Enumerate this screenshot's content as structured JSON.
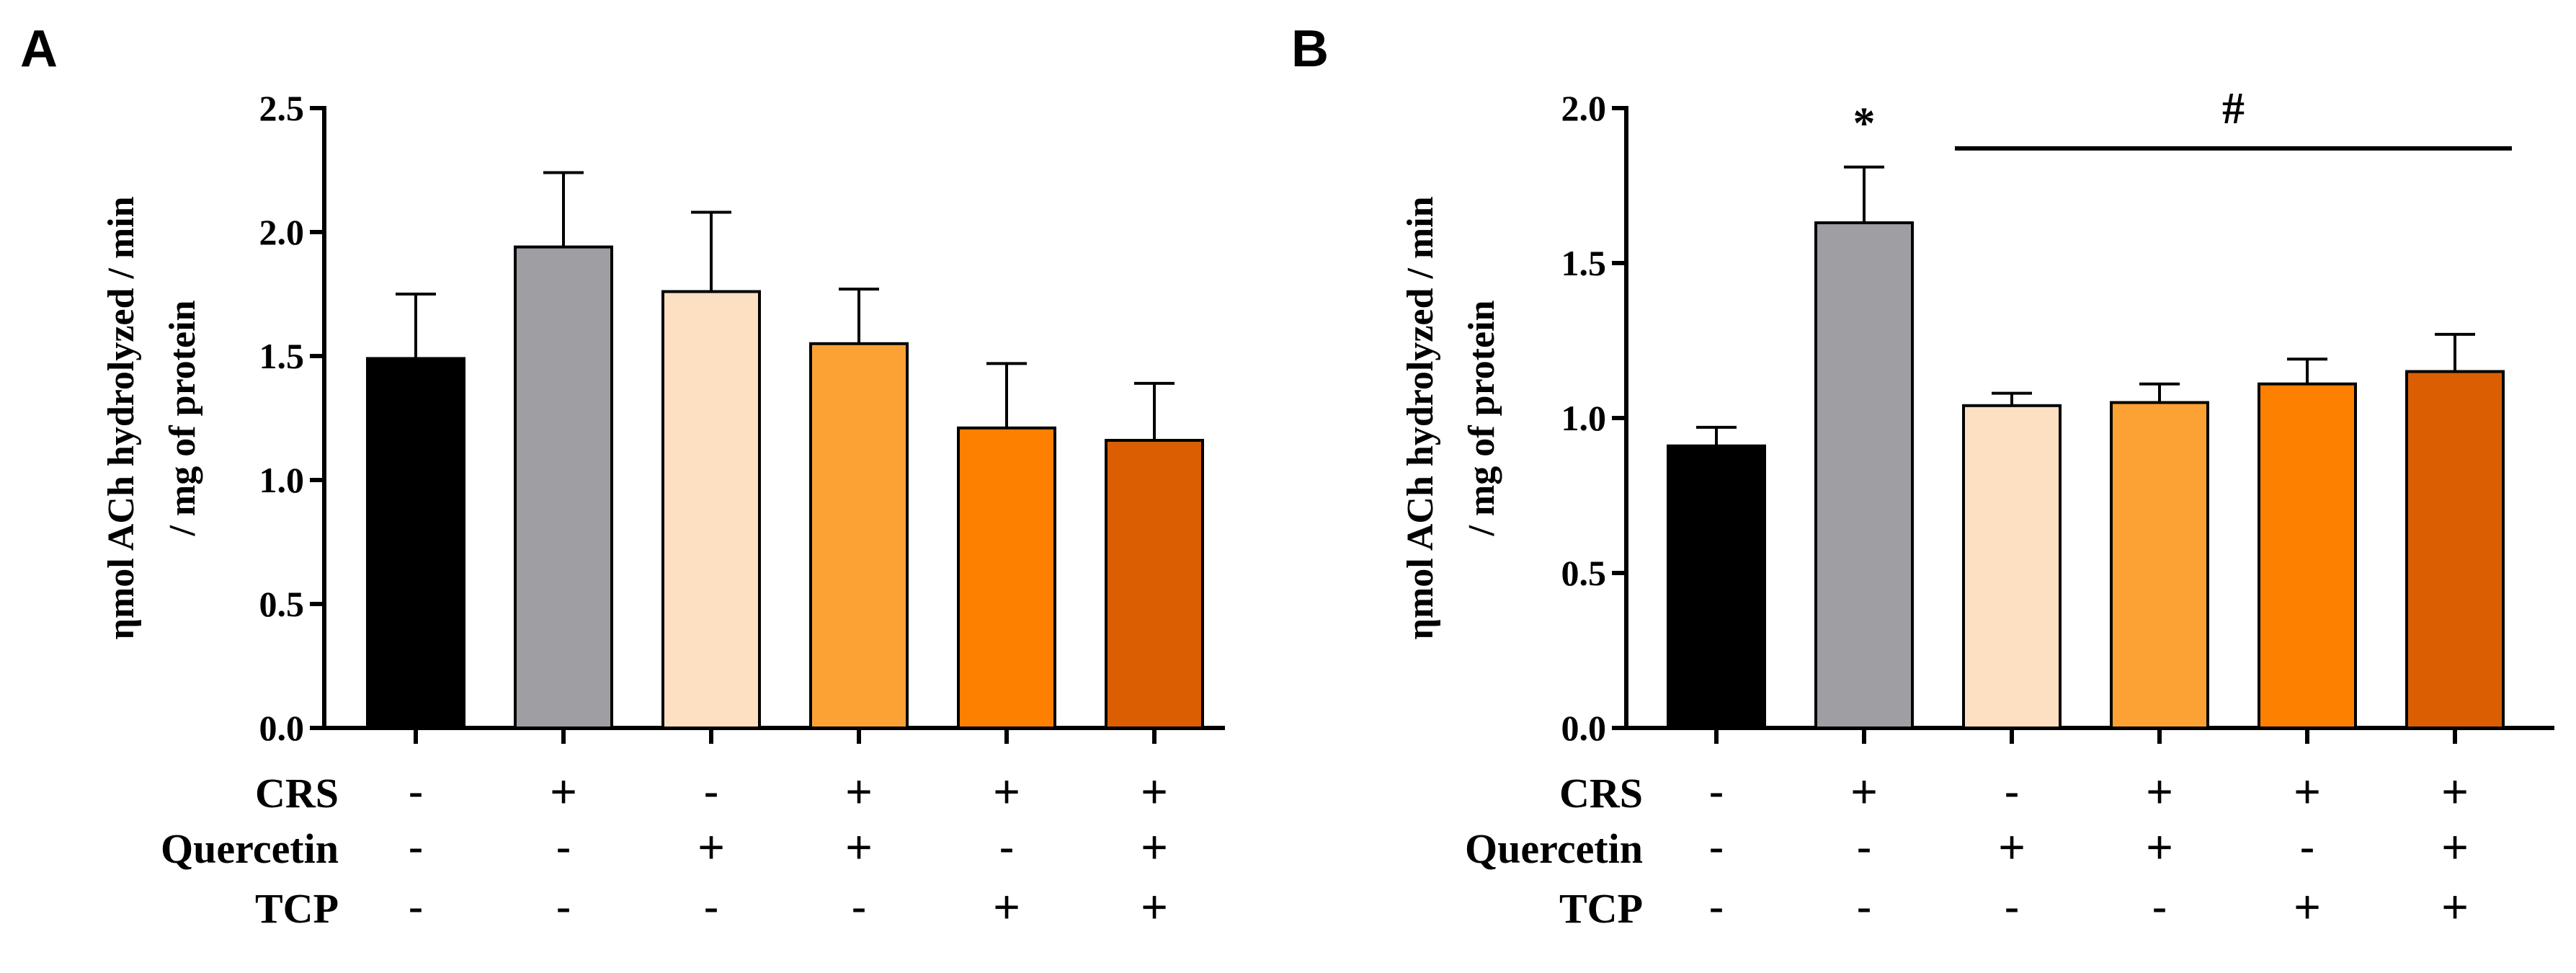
{
  "chart_data": [
    {
      "panel": "A",
      "type": "bar",
      "ylabel": [
        "ηmol ACh hydrolyzed / min",
        "/ mg of protein"
      ],
      "ylim": [
        0,
        2.5
      ],
      "yticks": [
        "0.0",
        "0.5",
        "1.0",
        "1.5",
        "2.0",
        "2.5"
      ],
      "values": [
        1.49,
        1.94,
        1.76,
        1.55,
        1.21,
        1.16
      ],
      "errors": [
        0.26,
        0.3,
        0.32,
        0.22,
        0.26,
        0.23
      ],
      "colors": [
        "#000000",
        "#9e9ea3",
        "#fde0c2",
        "#fca235",
        "#fd8000",
        "#db5f02"
      ],
      "annotations": [],
      "significance": null
    },
    {
      "panel": "B",
      "type": "bar",
      "ylabel": [
        "ηmol ACh hydrolyzed / min",
        "/ mg of protein"
      ],
      "ylim": [
        0,
        2.0
      ],
      "yticks": [
        "0.0",
        "0.5",
        "1.0",
        "1.5",
        "2.0"
      ],
      "values": [
        0.91,
        1.63,
        1.04,
        1.05,
        1.11,
        1.15
      ],
      "errors": [
        0.06,
        0.18,
        0.04,
        0.06,
        0.08,
        0.12
      ],
      "colors": [
        "#000000",
        "#9e9ea3",
        "#fde0c2",
        "#fca235",
        "#fd8000",
        "#db5f02"
      ],
      "annotations": [
        {
          "bar": 1,
          "text": "*"
        }
      ],
      "significance": {
        "from": 2,
        "to": 5,
        "text": "#",
        "y": 1.87
      }
    }
  ],
  "groups": {
    "labels": [
      "CRS",
      "Quercetin",
      "TCP"
    ],
    "rows": [
      [
        "-",
        "+",
        "-",
        "+",
        "+",
        "+"
      ],
      [
        "-",
        "-",
        "+",
        "+",
        "-",
        "+"
      ],
      [
        "-",
        "-",
        "-",
        "-",
        "+",
        "+"
      ]
    ]
  }
}
